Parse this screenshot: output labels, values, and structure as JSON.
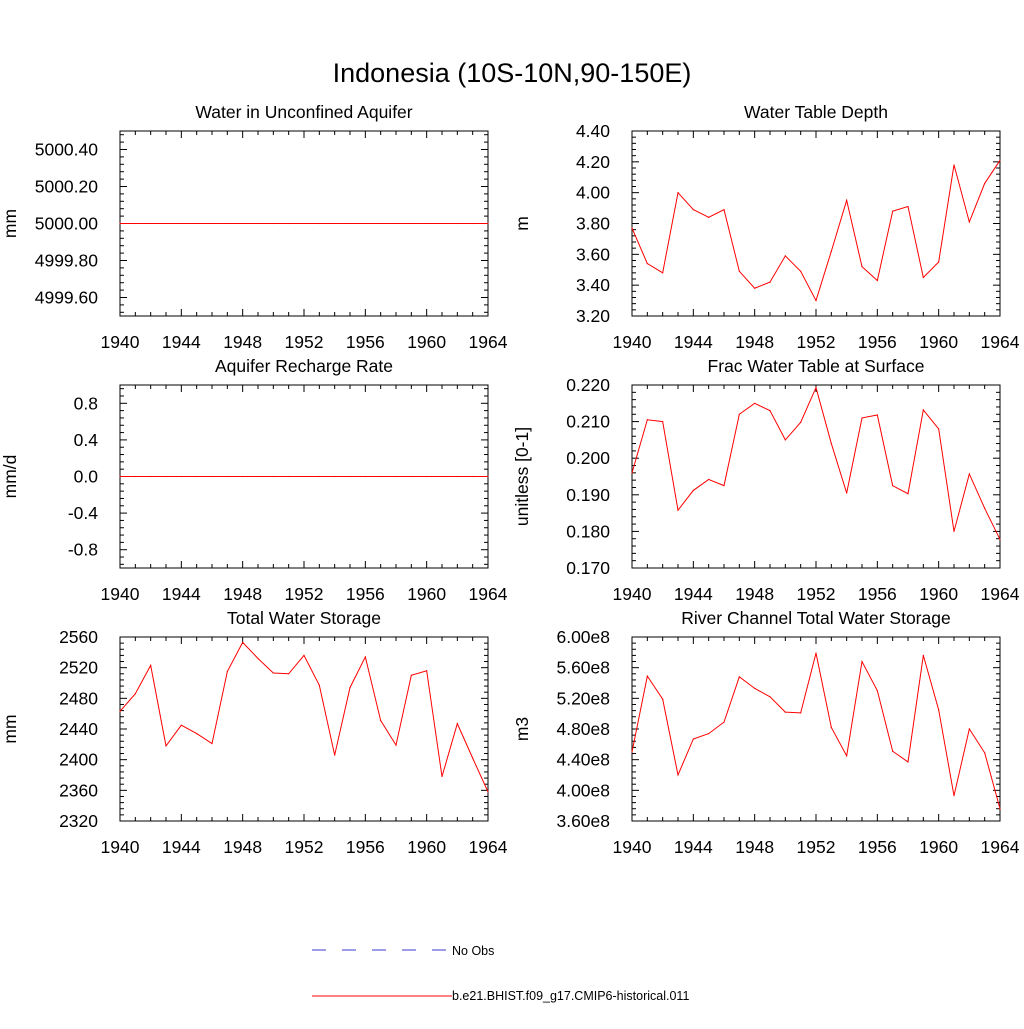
{
  "page": {
    "title": "Indonesia (10S-10N,90-150E)"
  },
  "colors": {
    "model": "#ff0000",
    "obs": "#3a3ad0",
    "axis": "#000000"
  },
  "legend": {
    "obs_label": "No Obs",
    "model_label": "b.e21.BHIST.f09_g17.CMIP6-historical.011",
    "placement": "bottom-center"
  },
  "chart_data": [
    {
      "type": "line",
      "title": "Water in Unconfined Aquifer",
      "ylabel": "mm",
      "xlim": [
        1940,
        1964
      ],
      "ylim": [
        4999.5,
        5000.5
      ],
      "xticks": [
        1940,
        1944,
        1948,
        1952,
        1956,
        1960,
        1964
      ],
      "yticks": [
        4999.6,
        4999.8,
        5000.0,
        5000.2,
        5000.4
      ],
      "ytick_labels": [
        "4999.60",
        "4999.80",
        "5000.00",
        "5000.20",
        "5000.40"
      ],
      "x": [
        1940,
        1941,
        1942,
        1943,
        1944,
        1945,
        1946,
        1947,
        1948,
        1949,
        1950,
        1951,
        1952,
        1953,
        1954,
        1955,
        1956,
        1957,
        1958,
        1959,
        1960,
        1961,
        1962,
        1963,
        1964
      ],
      "series": [
        {
          "name": "b.e21.BHIST.f09_g17.CMIP6-historical.011",
          "values": [
            5000,
            5000,
            5000,
            5000,
            5000,
            5000,
            5000,
            5000,
            5000,
            5000,
            5000,
            5000,
            5000,
            5000,
            5000,
            5000,
            5000,
            5000,
            5000,
            5000,
            5000,
            5000,
            5000,
            5000,
            5000
          ]
        }
      ]
    },
    {
      "type": "line",
      "title": "Water Table Depth",
      "ylabel": "m",
      "xlim": [
        1940,
        1964
      ],
      "ylim": [
        3.2,
        4.4
      ],
      "xticks": [
        1940,
        1944,
        1948,
        1952,
        1956,
        1960,
        1964
      ],
      "yticks": [
        3.2,
        3.4,
        3.6,
        3.8,
        4.0,
        4.2,
        4.4
      ],
      "ytick_labels": [
        "3.20",
        "3.40",
        "3.60",
        "3.80",
        "4.00",
        "4.20",
        "4.40"
      ],
      "x": [
        1940,
        1941,
        1942,
        1943,
        1944,
        1945,
        1946,
        1947,
        1948,
        1949,
        1950,
        1951,
        1952,
        1953,
        1954,
        1955,
        1956,
        1957,
        1958,
        1959,
        1960,
        1961,
        1962,
        1963,
        1964
      ],
      "series": [
        {
          "name": "b.e21.BHIST.f09_g17.CMIP6-historical.011",
          "values": [
            3.77,
            3.54,
            3.48,
            4.0,
            3.89,
            3.84,
            3.89,
            3.49,
            3.38,
            3.42,
            3.59,
            3.49,
            3.3,
            3.62,
            3.95,
            3.52,
            3.43,
            3.88,
            3.91,
            3.45,
            3.55,
            4.18,
            3.81,
            4.06,
            4.21
          ]
        }
      ]
    },
    {
      "type": "line",
      "title": "Aquifer Recharge Rate",
      "ylabel": "mm/d",
      "xlim": [
        1940,
        1964
      ],
      "ylim": [
        -1.0,
        1.0
      ],
      "xticks": [
        1940,
        1944,
        1948,
        1952,
        1956,
        1960,
        1964
      ],
      "yticks": [
        -0.8,
        -0.4,
        0.0,
        0.4,
        0.8
      ],
      "ytick_labels": [
        "-0.8",
        "-0.4",
        "0.0",
        "0.4",
        "0.8"
      ],
      "x": [
        1940,
        1941,
        1942,
        1943,
        1944,
        1945,
        1946,
        1947,
        1948,
        1949,
        1950,
        1951,
        1952,
        1953,
        1954,
        1955,
        1956,
        1957,
        1958,
        1959,
        1960,
        1961,
        1962,
        1963,
        1964
      ],
      "series": [
        {
          "name": "b.e21.BHIST.f09_g17.CMIP6-historical.011",
          "values": [
            0,
            0,
            0,
            0,
            0,
            0,
            0,
            0,
            0,
            0,
            0,
            0,
            0,
            0,
            0,
            0,
            0,
            0,
            0,
            0,
            0,
            0,
            0,
            0,
            0
          ]
        }
      ]
    },
    {
      "type": "line",
      "title": "Frac Water Table at Surface",
      "ylabel": "unitless [0-1]",
      "xlim": [
        1940,
        1964
      ],
      "ylim": [
        0.17,
        0.22
      ],
      "xticks": [
        1940,
        1944,
        1948,
        1952,
        1956,
        1960,
        1964
      ],
      "yticks": [
        0.17,
        0.18,
        0.19,
        0.2,
        0.21,
        0.22
      ],
      "ytick_labels": [
        "0.170",
        "0.180",
        "0.190",
        "0.200",
        "0.210",
        "0.220"
      ],
      "x": [
        1940,
        1941,
        1942,
        1943,
        1944,
        1945,
        1946,
        1947,
        1948,
        1949,
        1950,
        1951,
        1952,
        1953,
        1954,
        1955,
        1956,
        1957,
        1958,
        1959,
        1960,
        1961,
        1962,
        1963,
        1964
      ],
      "series": [
        {
          "name": "b.e21.BHIST.f09_g17.CMIP6-historical.011",
          "values": [
            0.196,
            0.2105,
            0.21,
            0.1858,
            0.1912,
            0.1942,
            0.1925,
            0.212,
            0.215,
            0.213,
            0.205,
            0.2098,
            0.2193,
            0.204,
            0.1905,
            0.211,
            0.2118,
            0.1925,
            0.1903,
            0.2132,
            0.208,
            0.18,
            0.1957,
            0.1863,
            0.1778
          ]
        }
      ]
    },
    {
      "type": "line",
      "title": "Total Water Storage",
      "ylabel": "mm",
      "xlim": [
        1940,
        1964
      ],
      "ylim": [
        2320,
        2560
      ],
      "xticks": [
        1940,
        1944,
        1948,
        1952,
        1956,
        1960,
        1964
      ],
      "yticks": [
        2320,
        2360,
        2400,
        2440,
        2480,
        2520,
        2560
      ],
      "ytick_labels": [
        "2320",
        "2360",
        "2400",
        "2440",
        "2480",
        "2520",
        "2560"
      ],
      "x": [
        1940,
        1941,
        1942,
        1943,
        1944,
        1945,
        1946,
        1947,
        1948,
        1949,
        1950,
        1951,
        1952,
        1953,
        1954,
        1955,
        1956,
        1957,
        1958,
        1959,
        1960,
        1961,
        1962,
        1963,
        1964
      ],
      "series": [
        {
          "name": "b.e21.BHIST.f09_g17.CMIP6-historical.011",
          "values": [
            2463,
            2486,
            2523,
            2418,
            2445,
            2434,
            2421,
            2515,
            2553,
            2532,
            2513,
            2512,
            2536,
            2497,
            2406,
            2494,
            2534,
            2451,
            2419,
            2510,
            2516,
            2378,
            2447,
            2402,
            2358
          ]
        }
      ]
    },
    {
      "type": "line",
      "title": "River Channel Total Water Storage",
      "ylabel": "m3",
      "xlim": [
        1940,
        1964
      ],
      "ylim": [
        360000000,
        600000000
      ],
      "xticks": [
        1940,
        1944,
        1948,
        1952,
        1956,
        1960,
        1964
      ],
      "yticks": [
        360000000,
        400000000,
        440000000,
        480000000,
        520000000,
        560000000,
        600000000
      ],
      "ytick_labels": [
        "3.60e8",
        "4.00e8",
        "4.40e8",
        "4.80e8",
        "5.20e8",
        "5.60e8",
        "6.00e8"
      ],
      "x": [
        1940,
        1941,
        1942,
        1943,
        1944,
        1945,
        1946,
        1947,
        1948,
        1949,
        1950,
        1951,
        1952,
        1953,
        1954,
        1955,
        1956,
        1957,
        1958,
        1959,
        1960,
        1961,
        1962,
        1963,
        1964
      ],
      "series": [
        {
          "name": "b.e21.BHIST.f09_g17.CMIP6-historical.011",
          "values": [
            450000000,
            549000000,
            519000000,
            420000000,
            467000000,
            474000000,
            489000000,
            548000000,
            533000000,
            522000000,
            502000000,
            501000000,
            579000000,
            482000000,
            445000000,
            568000000,
            530000000,
            451000000,
            437000000,
            576000000,
            505000000,
            393000000,
            480000000,
            449000000,
            376000000
          ]
        }
      ]
    }
  ]
}
